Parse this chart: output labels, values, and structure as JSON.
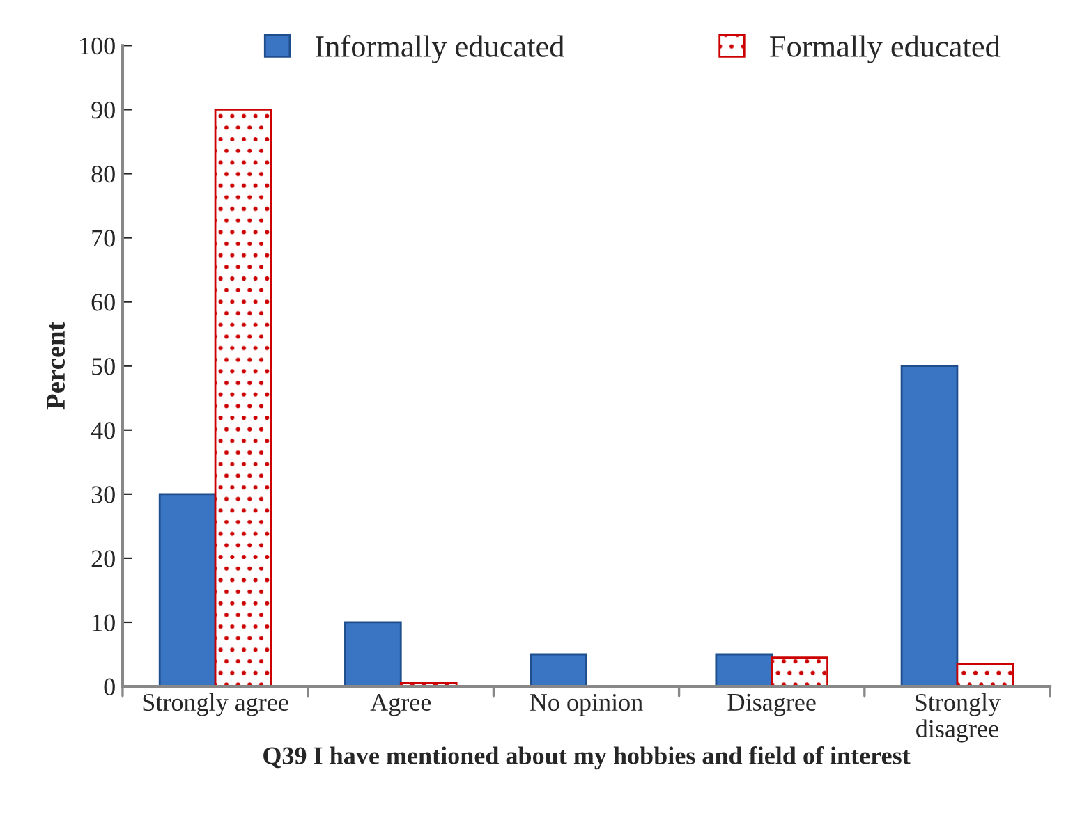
{
  "chart_data": {
    "type": "bar",
    "xlabel": "Q39 I have mentioned about my hobbies and field of interest",
    "ylabel": "Percent",
    "categories": [
      "Strongly agree",
      "Agree",
      "No opinion",
      "Disagree",
      "Strongly\ndisagree"
    ],
    "series": [
      {
        "name": "Informally educated",
        "color": "#3a75c4",
        "values": [
          30,
          10,
          5,
          5,
          50
        ]
      },
      {
        "name": "Formally educated",
        "color": "#cc0000",
        "values": [
          90,
          0.5,
          0,
          4.5,
          3.5
        ]
      }
    ],
    "ylim": [
      0,
      100
    ],
    "yticks": [
      0,
      10,
      20,
      30,
      40,
      50,
      60,
      70,
      80,
      90,
      100
    ],
    "grid": false,
    "legend": "top"
  }
}
